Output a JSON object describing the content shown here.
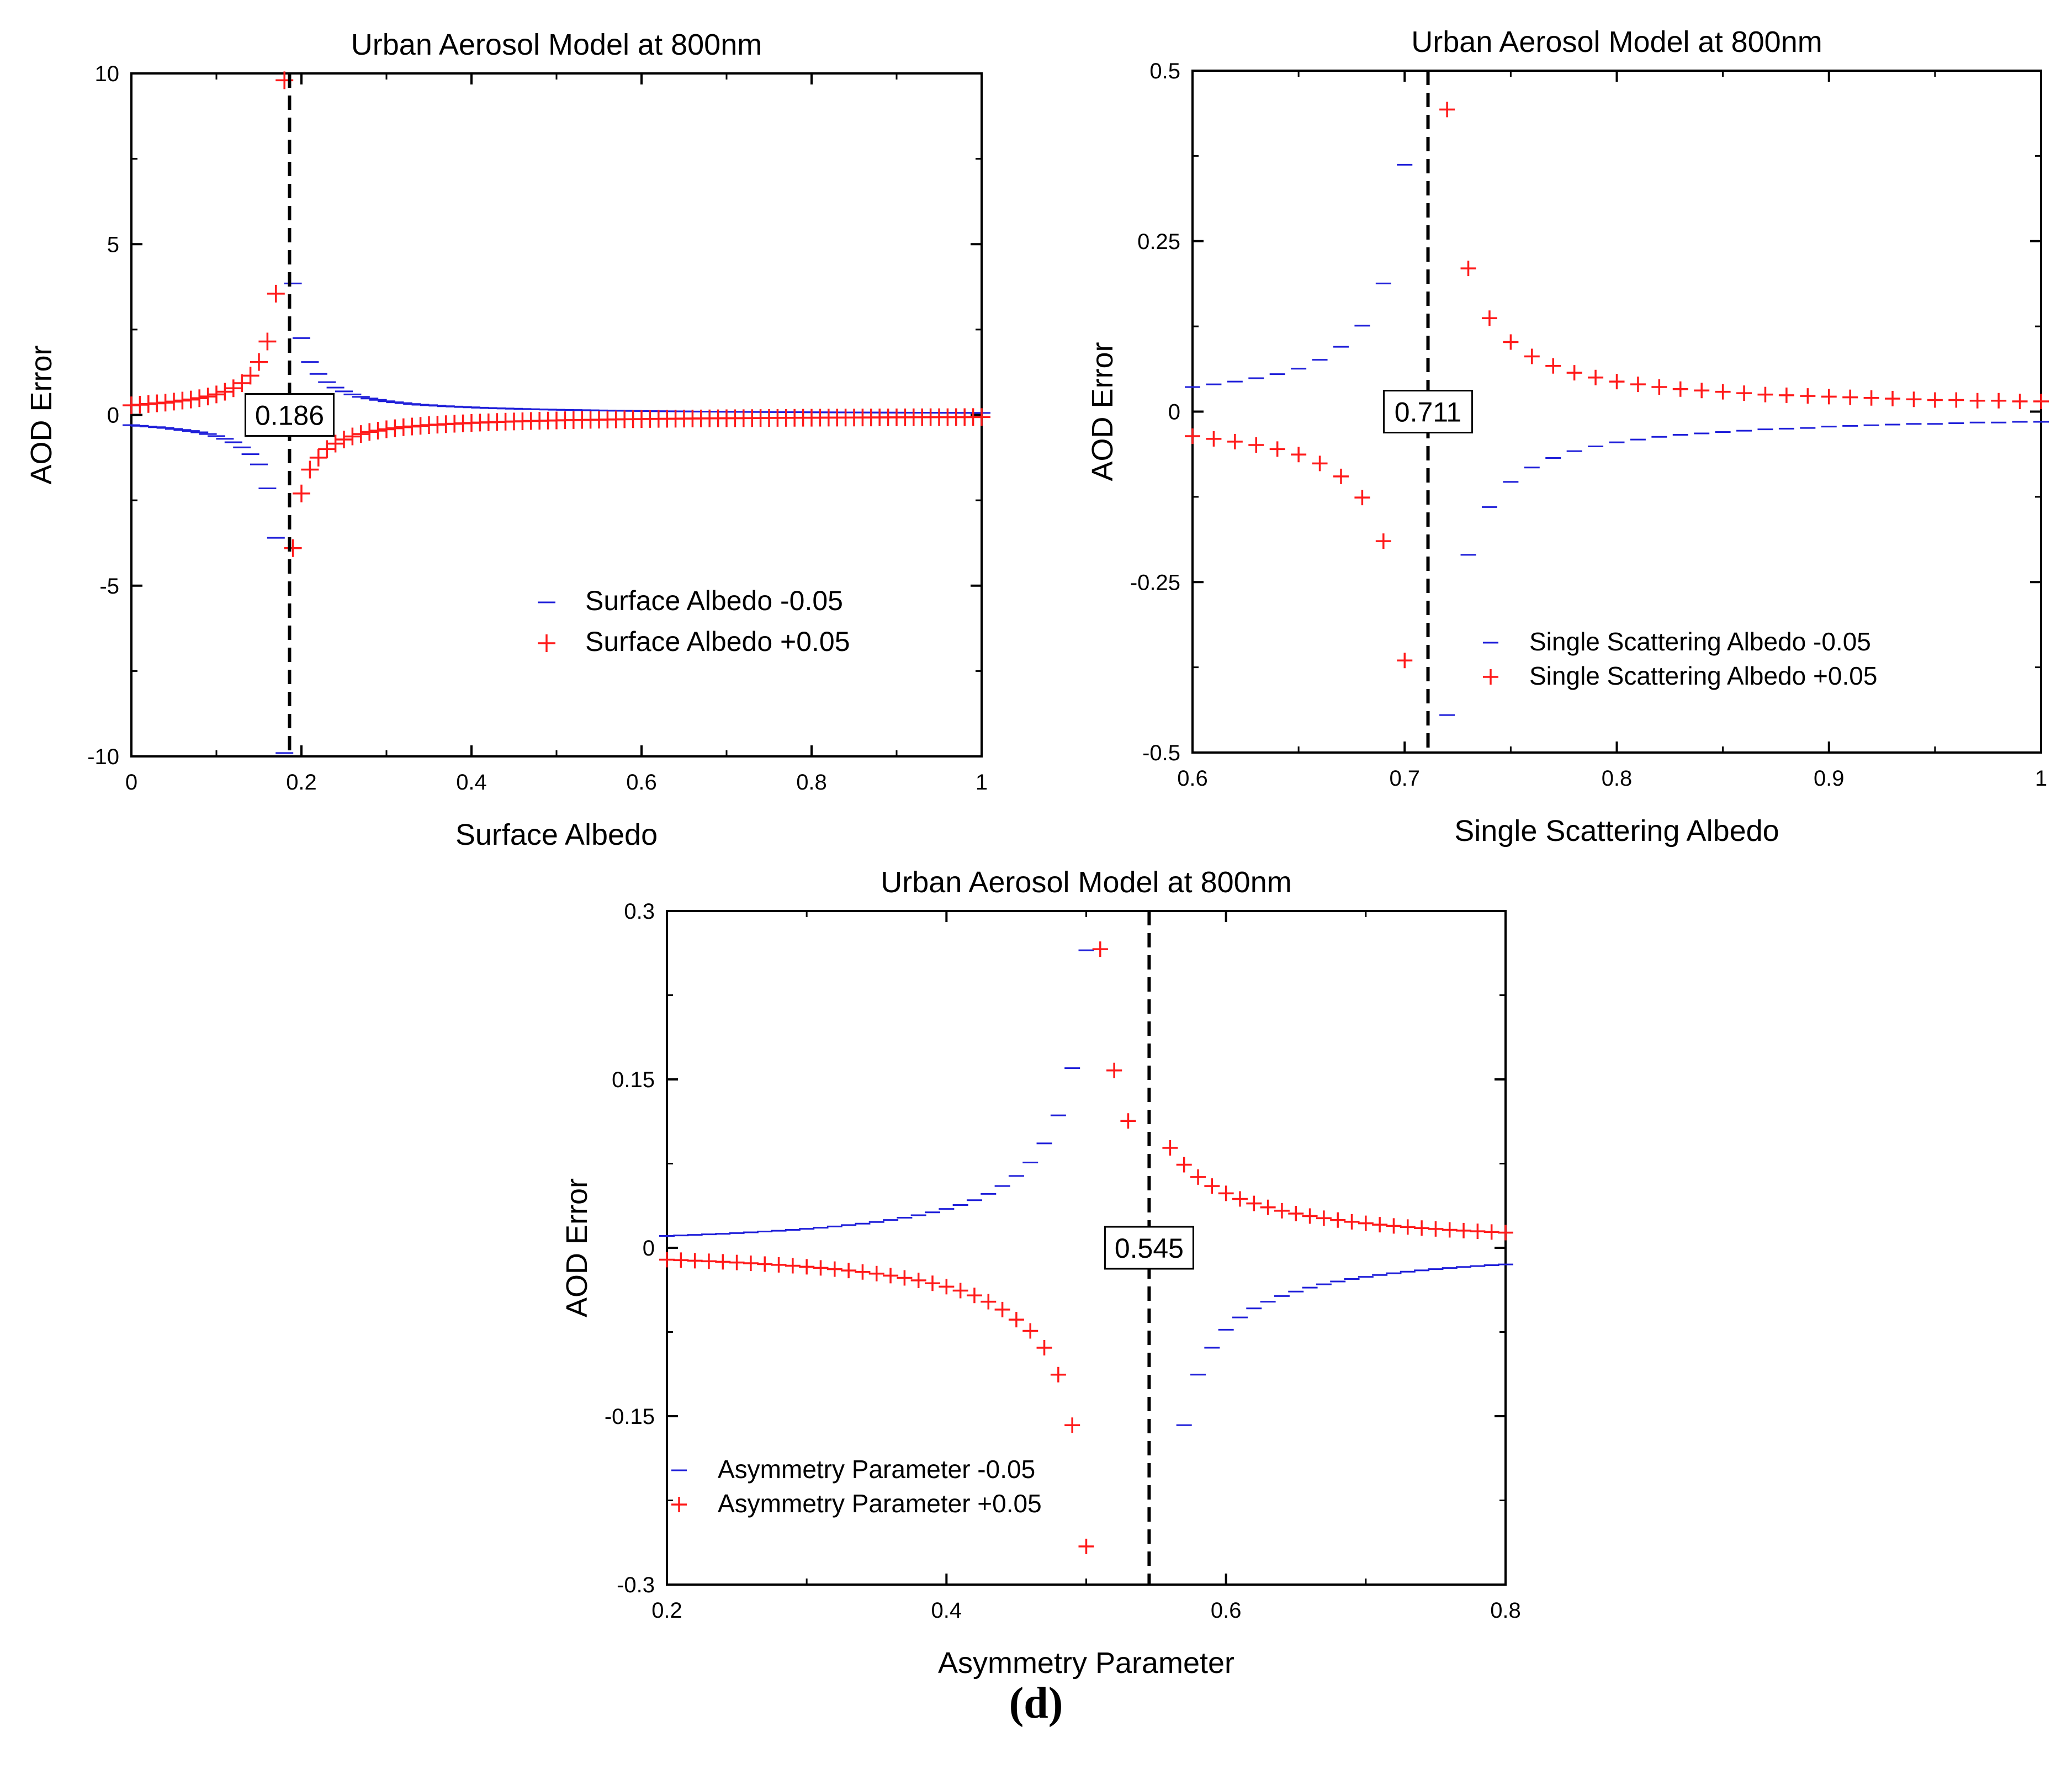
{
  "figure": {
    "caption": "(d)"
  },
  "chart_data": [
    {
      "id": "surface",
      "type": "scatter",
      "title": "Urban Aerosol Model at 800nm",
      "xlabel": "Surface Albedo",
      "ylabel": "AOD Error",
      "xlim": [
        0,
        1
      ],
      "ylim": [
        -10,
        10
      ],
      "xticks": [
        0,
        0.2,
        0.4,
        0.6,
        0.8,
        1
      ],
      "xtick_labels": [
        "0",
        "0.2",
        "0.4",
        "0.6",
        "0.8",
        "1"
      ],
      "yticks": [
        -10,
        -5,
        0,
        5,
        10
      ],
      "ytick_labels": [
        "-10",
        "-5",
        "0",
        "5",
        "10"
      ],
      "critical_x": 0.186,
      "critical_label": "0.186",
      "legend": {
        "position": "lower-right",
        "entries": [
          "Surface Albedo -0.05",
          "Surface Albedo +0.05"
        ]
      },
      "series": [
        {
          "name": "Surface Albedo -0.05",
          "marker": "minus",
          "color": "#1f1fd9",
          "x": [
            0,
            0.01,
            0.02,
            0.03,
            0.04,
            0.05,
            0.06,
            0.07,
            0.08,
            0.09,
            0.1,
            0.11,
            0.12,
            0.13,
            0.14,
            0.15,
            0.16,
            0.17,
            0.18,
            0.19,
            0.2,
            0.21,
            0.22,
            0.23,
            0.24,
            0.25,
            0.26,
            0.27,
            0.28,
            0.29,
            0.3,
            0.31,
            0.32,
            0.33,
            0.34,
            0.35,
            0.36,
            0.37,
            0.38,
            0.39,
            0.4,
            0.41,
            0.42,
            0.43,
            0.44,
            0.45,
            0.46,
            0.47,
            0.48,
            0.49,
            0.5,
            0.51,
            0.52,
            0.53,
            0.54,
            0.55,
            0.56,
            0.57,
            0.58,
            0.59,
            0.6,
            0.61,
            0.62,
            0.63,
            0.64,
            0.65,
            0.66,
            0.67,
            0.68,
            0.69,
            0.7,
            0.71,
            0.72,
            0.73,
            0.74,
            0.75,
            0.76,
            0.77,
            0.78,
            0.79,
            0.8,
            0.81,
            0.82,
            0.83,
            0.84,
            0.85,
            0.86,
            0.87,
            0.88,
            0.89,
            0.9,
            0.91,
            0.92,
            0.93,
            0.94,
            0.95,
            0.96,
            0.97,
            0.98,
            0.99,
            1.0
          ],
          "y": [
            -0.3,
            -0.32,
            -0.34,
            -0.36,
            -0.38,
            -0.41,
            -0.44,
            -0.47,
            -0.51,
            -0.56,
            -0.62,
            -0.7,
            -0.8,
            -0.95,
            -1.15,
            -1.45,
            -2.15,
            -3.6,
            -9.9,
            3.85,
            2.25,
            1.55,
            1.2,
            0.96,
            0.8,
            0.69,
            0.6,
            0.53,
            0.48,
            0.44,
            0.4,
            0.37,
            0.345,
            0.32,
            0.3,
            0.285,
            0.27,
            0.255,
            0.245,
            0.233,
            0.222,
            0.212,
            0.203,
            0.195,
            0.188,
            0.181,
            0.174,
            0.168,
            0.162,
            0.157,
            0.152,
            0.147,
            0.143,
            0.139,
            0.135,
            0.131,
            0.127,
            0.124,
            0.121,
            0.118,
            0.115,
            0.112,
            0.11,
            0.107,
            0.105,
            0.103,
            0.1,
            0.098,
            0.096,
            0.094,
            0.092,
            0.091,
            0.089,
            0.087,
            0.086,
            0.084,
            0.083,
            0.081,
            0.08,
            0.079,
            0.077,
            0.076,
            0.075,
            0.074,
            0.073,
            0.072,
            0.071,
            0.07,
            0.069,
            0.068,
            0.067,
            0.066,
            0.065,
            0.064,
            0.064,
            0.063,
            0.062,
            0.061,
            0.061,
            0.06,
            0.059
          ]
        },
        {
          "name": "Surface Albedo +0.05",
          "marker": "plus",
          "color": "#ff1a1a",
          "x": [
            0,
            0.01,
            0.02,
            0.03,
            0.04,
            0.05,
            0.06,
            0.07,
            0.08,
            0.09,
            0.1,
            0.11,
            0.12,
            0.13,
            0.14,
            0.15,
            0.16,
            0.17,
            0.18,
            0.19,
            0.2,
            0.21,
            0.22,
            0.23,
            0.24,
            0.25,
            0.26,
            0.27,
            0.28,
            0.29,
            0.3,
            0.31,
            0.32,
            0.33,
            0.34,
            0.35,
            0.36,
            0.37,
            0.38,
            0.39,
            0.4,
            0.41,
            0.42,
            0.43,
            0.44,
            0.45,
            0.46,
            0.47,
            0.48,
            0.49,
            0.5,
            0.51,
            0.52,
            0.53,
            0.54,
            0.55,
            0.56,
            0.57,
            0.58,
            0.59,
            0.6,
            0.61,
            0.62,
            0.63,
            0.64,
            0.65,
            0.66,
            0.67,
            0.68,
            0.69,
            0.7,
            0.71,
            0.72,
            0.73,
            0.74,
            0.75,
            0.76,
            0.77,
            0.78,
            0.79,
            0.8,
            0.81,
            0.82,
            0.83,
            0.84,
            0.85,
            0.86,
            0.87,
            0.88,
            0.89,
            0.9,
            0.91,
            0.92,
            0.93,
            0.94,
            0.95,
            0.96,
            0.97,
            0.98,
            0.99,
            1.0
          ],
          "y": [
            0.28,
            0.3,
            0.32,
            0.34,
            0.36,
            0.39,
            0.42,
            0.45,
            0.49,
            0.54,
            0.6,
            0.68,
            0.78,
            0.93,
            1.15,
            1.55,
            2.15,
            3.55,
            9.8,
            -3.9,
            -2.3,
            -1.6,
            -1.25,
            -1.0,
            -0.84,
            -0.72,
            -0.63,
            -0.56,
            -0.5,
            -0.46,
            -0.42,
            -0.39,
            -0.36,
            -0.34,
            -0.32,
            -0.3,
            -0.285,
            -0.27,
            -0.258,
            -0.246,
            -0.235,
            -0.225,
            -0.216,
            -0.207,
            -0.199,
            -0.192,
            -0.185,
            -0.178,
            -0.172,
            -0.166,
            -0.161,
            -0.156,
            -0.151,
            -0.147,
            -0.143,
            -0.139,
            -0.135,
            -0.131,
            -0.128,
            -0.125,
            -0.122,
            -0.119,
            -0.116,
            -0.113,
            -0.111,
            -0.108,
            -0.106,
            -0.104,
            -0.102,
            -0.1,
            -0.098,
            -0.096,
            -0.094,
            -0.092,
            -0.091,
            -0.089,
            -0.087,
            -0.086,
            -0.084,
            -0.083,
            -0.082,
            -0.08,
            -0.079,
            -0.078,
            -0.077,
            -0.076,
            -0.075,
            -0.074,
            -0.073,
            -0.072,
            -0.071,
            -0.07,
            -0.069,
            -0.068,
            -0.067,
            -0.066,
            -0.066,
            -0.065,
            -0.064,
            -0.063,
            -0.063
          ]
        }
      ]
    },
    {
      "id": "ssa",
      "type": "scatter",
      "title": "Urban Aerosol Model at 800nm",
      "xlabel": "Single Scattering Albedo",
      "ylabel": "AOD Error",
      "xlim": [
        0.6,
        1
      ],
      "ylim": [
        -0.5,
        0.5
      ],
      "xticks": [
        0.6,
        0.7,
        0.8,
        0.9,
        1
      ],
      "xtick_labels": [
        "0.6",
        "0.7",
        "0.8",
        "0.9",
        "1"
      ],
      "yticks": [
        -0.5,
        -0.25,
        0,
        0.25,
        0.5
      ],
      "ytick_labels": [
        "-0.5",
        "-0.25",
        "0",
        "0.25",
        "0.5"
      ],
      "critical_x": 0.711,
      "critical_label": "0.711",
      "legend": {
        "position": "lower-right",
        "entries": [
          "Single Scattering Albedo -0.05",
          "Single Scattering Albedo +0.05"
        ]
      },
      "series": [
        {
          "name": "Single Scattering Albedo -0.05",
          "marker": "minus",
          "color": "#1f1fd9",
          "x": [
            0.6,
            0.61,
            0.62,
            0.63,
            0.64,
            0.65,
            0.66,
            0.67,
            0.68,
            0.69,
            0.7,
            0.72,
            0.73,
            0.74,
            0.75,
            0.76,
            0.77,
            0.78,
            0.79,
            0.8,
            0.81,
            0.82,
            0.83,
            0.84,
            0.85,
            0.86,
            0.87,
            0.88,
            0.89,
            0.9,
            0.91,
            0.92,
            0.93,
            0.94,
            0.95,
            0.96,
            0.97,
            0.98,
            0.99,
            1.0
          ],
          "y": [
            0.036,
            0.04,
            0.044,
            0.049,
            0.055,
            0.063,
            0.076,
            0.095,
            0.126,
            0.188,
            0.362,
            -0.445,
            -0.21,
            -0.14,
            -0.103,
            -0.082,
            -0.068,
            -0.058,
            -0.051,
            -0.045,
            -0.041,
            -0.037,
            -0.034,
            -0.032,
            -0.03,
            -0.028,
            -0.026,
            -0.025,
            -0.024,
            -0.022,
            -0.021,
            -0.02,
            -0.019,
            -0.018,
            -0.018,
            -0.017,
            -0.016,
            -0.016,
            -0.015,
            -0.015
          ]
        },
        {
          "name": "Single Scattering Albedo +0.05",
          "marker": "plus",
          "color": "#ff1a1a",
          "x": [
            0.6,
            0.61,
            0.62,
            0.63,
            0.64,
            0.65,
            0.66,
            0.67,
            0.68,
            0.69,
            0.7,
            0.72,
            0.73,
            0.74,
            0.75,
            0.76,
            0.77,
            0.78,
            0.79,
            0.8,
            0.81,
            0.82,
            0.83,
            0.84,
            0.85,
            0.86,
            0.87,
            0.88,
            0.89,
            0.9,
            0.91,
            0.92,
            0.93,
            0.94,
            0.95,
            0.96,
            0.97,
            0.98,
            0.99,
            1.0
          ],
          "y": [
            -0.036,
            -0.04,
            -0.044,
            -0.049,
            -0.055,
            -0.063,
            -0.076,
            -0.095,
            -0.126,
            -0.19,
            -0.365,
            0.443,
            0.21,
            0.137,
            0.102,
            0.081,
            0.067,
            0.057,
            0.05,
            0.044,
            0.04,
            0.036,
            0.033,
            0.031,
            0.029,
            0.027,
            0.025,
            0.024,
            0.023,
            0.022,
            0.021,
            0.02,
            0.019,
            0.018,
            0.017,
            0.017,
            0.016,
            0.016,
            0.015,
            0.015
          ]
        }
      ]
    },
    {
      "id": "asym",
      "type": "scatter",
      "title": "Urban Aerosol Model at 800nm",
      "xlabel": "Asymmetry Parameter",
      "ylabel": "AOD Error",
      "xlim": [
        0.2,
        0.8
      ],
      "ylim": [
        -0.3,
        0.3
      ],
      "xticks": [
        0.2,
        0.4,
        0.6,
        0.8
      ],
      "xtick_labels": [
        "0.2",
        "0.4",
        "0.6",
        "0.8"
      ],
      "yticks": [
        -0.3,
        -0.15,
        0,
        0.15,
        0.3
      ],
      "ytick_labels": [
        "-0.3",
        "-0.15",
        "0",
        "0.15",
        "0.3"
      ],
      "critical_x": 0.545,
      "critical_label": "0.545",
      "legend": {
        "position": "lower-left",
        "entries": [
          "Asymmetry Parameter -0.05",
          "Asymmetry Parameter +0.05"
        ]
      },
      "series": [
        {
          "name": "Asymmetry Parameter -0.05",
          "marker": "minus",
          "color": "#1f1fd9",
          "x": [
            0.2,
            0.21,
            0.22,
            0.23,
            0.24,
            0.25,
            0.26,
            0.27,
            0.28,
            0.29,
            0.3,
            0.31,
            0.32,
            0.33,
            0.34,
            0.35,
            0.36,
            0.37,
            0.38,
            0.39,
            0.4,
            0.41,
            0.42,
            0.43,
            0.44,
            0.45,
            0.46,
            0.47,
            0.48,
            0.49,
            0.5,
            0.51,
            0.52,
            0.53,
            0.57,
            0.58,
            0.59,
            0.6,
            0.61,
            0.62,
            0.63,
            0.64,
            0.65,
            0.66,
            0.67,
            0.68,
            0.69,
            0.7,
            0.71,
            0.72,
            0.73,
            0.74,
            0.75,
            0.76,
            0.77,
            0.78,
            0.79,
            0.8
          ],
          "y": [
            0.0106,
            0.011,
            0.0115,
            0.012,
            0.0125,
            0.0131,
            0.0138,
            0.0145,
            0.0152,
            0.016,
            0.0169,
            0.0179,
            0.019,
            0.0202,
            0.0215,
            0.023,
            0.0248,
            0.0268,
            0.029,
            0.0316,
            0.0346,
            0.0381,
            0.0424,
            0.048,
            0.055,
            0.064,
            0.076,
            0.093,
            0.118,
            0.16,
            0.265,
            0.266,
            0.158,
            0.113,
            -0.158,
            -0.113,
            -0.089,
            -0.073,
            -0.062,
            -0.054,
            -0.048,
            -0.043,
            -0.039,
            -0.0355,
            -0.0325,
            -0.03,
            -0.0278,
            -0.0259,
            -0.0242,
            -0.0227,
            -0.0213,
            -0.0201,
            -0.019,
            -0.018,
            -0.0171,
            -0.0163,
            -0.0155,
            -0.0148
          ]
        },
        {
          "name": "Asymmetry Parameter +0.05",
          "marker": "plus",
          "color": "#ff1a1a",
          "x": [
            0.2,
            0.21,
            0.22,
            0.23,
            0.24,
            0.25,
            0.26,
            0.27,
            0.28,
            0.29,
            0.3,
            0.31,
            0.32,
            0.33,
            0.34,
            0.35,
            0.36,
            0.37,
            0.38,
            0.39,
            0.4,
            0.41,
            0.42,
            0.43,
            0.44,
            0.45,
            0.46,
            0.47,
            0.48,
            0.49,
            0.5,
            0.51,
            0.52,
            0.53,
            0.56,
            0.57,
            0.58,
            0.59,
            0.6,
            0.61,
            0.62,
            0.63,
            0.64,
            0.65,
            0.66,
            0.67,
            0.68,
            0.69,
            0.7,
            0.71,
            0.72,
            0.73,
            0.74,
            0.75,
            0.76,
            0.77,
            0.78,
            0.79,
            0.8
          ],
          "y": [
            -0.0106,
            -0.011,
            -0.0115,
            -0.012,
            -0.0125,
            -0.0131,
            -0.0138,
            -0.0145,
            -0.0152,
            -0.016,
            -0.0169,
            -0.0179,
            -0.019,
            -0.0202,
            -0.0215,
            -0.023,
            -0.0248,
            -0.0268,
            -0.029,
            -0.0316,
            -0.0346,
            -0.0381,
            -0.0424,
            -0.048,
            -0.055,
            -0.064,
            -0.074,
            -0.089,
            -0.113,
            -0.158,
            -0.266,
            0.266,
            0.158,
            0.113,
            0.089,
            0.074,
            0.063,
            0.055,
            0.0485,
            0.0435,
            0.0395,
            0.036,
            0.033,
            0.0305,
            0.0283,
            0.0264,
            0.0247,
            0.0232,
            0.0218,
            0.0206,
            0.0195,
            0.0185,
            0.0176,
            0.0168,
            0.016,
            0.0153,
            0.0147,
            0.0141,
            0.0135
          ]
        }
      ]
    }
  ]
}
